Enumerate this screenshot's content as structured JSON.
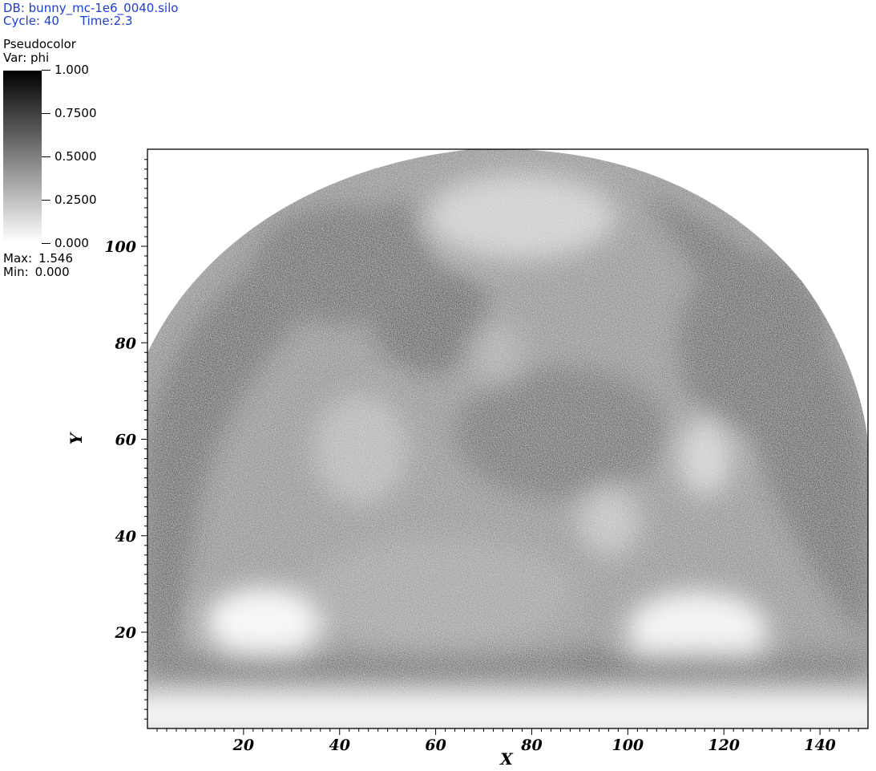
{
  "header": {
    "db_label": "DB: bunny_mc-1e6_0040.silo",
    "cycle_label": "Cycle: 40",
    "time_label": "Time:2.3"
  },
  "legend": {
    "plot_type": "Pseudocolor",
    "var_label": "Var: phi",
    "tick_labels": [
      "1.000",
      "0.7500",
      "0.5000",
      "0.2500",
      "0.000"
    ],
    "max_key": "Max:",
    "max_value": "1.546",
    "min_key": "Min:",
    "min_value": "0.000",
    "color_high": "#000000",
    "color_low": "#ffffff"
  },
  "chart_data": {
    "type": "heatmap",
    "title": "",
    "xlabel": "X",
    "ylabel": "Y",
    "xlim": [
      0,
      150
    ],
    "ylim": [
      0,
      120
    ],
    "x_ticks": [
      "20",
      "40",
      "60",
      "80",
      "100",
      "120",
      "140"
    ],
    "y_ticks": [
      "20",
      "40",
      "60",
      "80",
      "100"
    ],
    "colormap": "gray (white=0, black=1)",
    "var": "phi",
    "value_range": [
      0.0,
      1.0
    ],
    "data_max": 1.546,
    "data_min": 0.0,
    "grid": false
  }
}
